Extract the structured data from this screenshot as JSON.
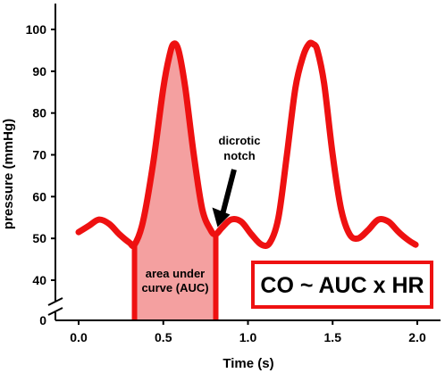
{
  "chart_data": {
    "type": "line",
    "title": "",
    "xlabel": "Time (s)",
    "ylabel": "pressure (mmHg)",
    "xlim": [
      -0.2,
      2.15
    ],
    "ylim": [
      34,
      105
    ],
    "x_axis_break": "below 40 to 0",
    "x_ticks": [
      0.0,
      0.5,
      1.0,
      1.5,
      2.0
    ],
    "x_tick_labels": [
      "0.0",
      "0.5",
      "1.0",
      "1.5",
      "2.0"
    ],
    "y_ticks": [
      40,
      50,
      60,
      70,
      80,
      90,
      100
    ],
    "y_tick_labels": [
      "40",
      "50",
      "60",
      "70",
      "80",
      "90",
      "100"
    ],
    "y_zero_label": "0",
    "grid": false,
    "series": [
      {
        "color": "#ee1111",
        "x": [
          0.0,
          0.06,
          0.12,
          0.18,
          0.24,
          0.3,
          0.33,
          0.38,
          0.44,
          0.5,
          0.535,
          0.56,
          0.59,
          0.63,
          0.68,
          0.73,
          0.78,
          0.81,
          0.845,
          0.9,
          0.96,
          1.02,
          1.08,
          1.13,
          1.18,
          1.23,
          1.28,
          1.325,
          1.36,
          1.385,
          1.41,
          1.45,
          1.5,
          1.55,
          1.6,
          1.65,
          1.71,
          1.77,
          1.83,
          1.89,
          1.95,
          1.99
        ],
        "y": [
          51.5,
          53,
          54.5,
          53.5,
          51,
          49,
          48.5,
          54,
          68,
          86,
          93.5,
          96.5,
          95,
          86,
          70,
          57,
          52,
          51,
          52.5,
          54.5,
          54,
          51,
          48.5,
          49,
          55,
          70,
          86,
          93.5,
          96.5,
          96.5,
          95,
          87,
          70,
          57,
          51,
          50,
          52,
          54.5,
          54,
          51.5,
          49.5,
          48.5
        ]
      }
    ],
    "shaded_region": {
      "label": "area under curve (AUC)",
      "x_start": 0.33,
      "x_end": 0.81,
      "color": "#f4a0a0"
    },
    "annotations": [
      {
        "text": "dicrotic notch",
        "point_x": 0.81,
        "point_y": 51,
        "color": "#000000"
      }
    ],
    "formula_box": {
      "text": "CO ~ AUC x HR",
      "border_color": "#ee1111"
    }
  },
  "labels": {
    "auc_line1": "area under",
    "auc_line2": "curve (AUC)",
    "notch_line1": "dicrotic",
    "notch_line2": "notch"
  }
}
